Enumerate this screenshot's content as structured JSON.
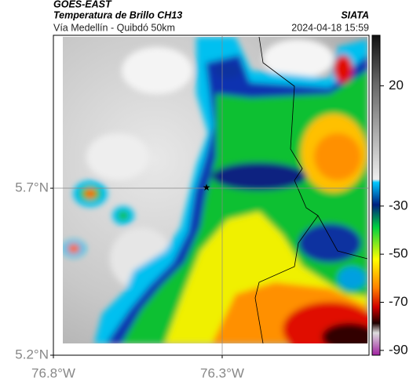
{
  "header": {
    "source": "GOES-EAST",
    "product": "Temperatura de Brillo CH13",
    "route": "Vía Medellín - Quibdó 50km",
    "agency": "SIATA",
    "timestamp": "2024-04-18 15:59"
  },
  "map": {
    "xlim": [
      -76.8,
      -75.865
    ],
    "ylim": [
      5.2,
      6.158
    ],
    "xticks": [
      {
        "value": -76.8,
        "label": "76.8°W"
      },
      {
        "value": -76.3,
        "label": "76.3°W"
      }
    ],
    "yticks": [
      {
        "value": 5.7,
        "label": "5.7°N"
      },
      {
        "value": 5.2,
        "label": "5.2°N"
      }
    ],
    "colorbar": {
      "lim": [
        -92,
        41
      ],
      "ticks": [
        20,
        -30,
        -50,
        -70,
        -90
      ]
    }
  }
}
